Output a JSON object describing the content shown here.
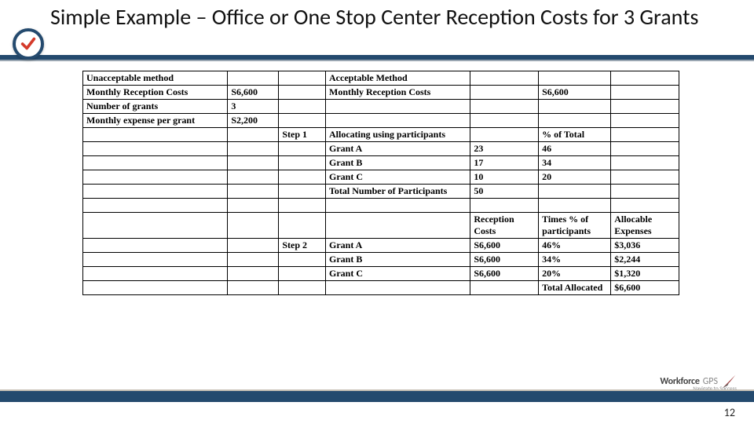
{
  "title": "Simple Example – Office or One Stop Center Reception Costs for 3 Grants",
  "page_number": "12",
  "logo": {
    "brand": "Workforce",
    "suffix": "GPS",
    "tagline": "Navigate to Success"
  },
  "colors": {
    "accent": "#244a6e",
    "check": "#d43a2a"
  },
  "table": {
    "columns": [
      "c1",
      "c2",
      "c3",
      "c4",
      "c5",
      "c6",
      "c7"
    ],
    "rows": [
      [
        {
          "t": "Unacceptable method",
          "b": true
        },
        {
          "t": ""
        },
        {
          "t": ""
        },
        {
          "t": "Acceptable Method",
          "b": true
        },
        {
          "t": ""
        },
        {
          "t": ""
        },
        {
          "t": ""
        }
      ],
      [
        {
          "t": "Monthly Reception Costs",
          "b": true
        },
        {
          "t": "S6,600",
          "b": true
        },
        {
          "t": ""
        },
        {
          "t": "Monthly Reception Costs",
          "b": true
        },
        {
          "t": ""
        },
        {
          "t": "S6,600",
          "b": true
        },
        {
          "t": ""
        }
      ],
      [
        {
          "t": "Number of grants",
          "b": true
        },
        {
          "t": "3",
          "b": true
        },
        {
          "t": ""
        },
        {
          "t": ""
        },
        {
          "t": ""
        },
        {
          "t": ""
        },
        {
          "t": ""
        }
      ],
      [
        {
          "t": "Monthly expense per grant",
          "b": true
        },
        {
          "t": "S2,200",
          "b": true
        },
        {
          "t": ""
        },
        {
          "t": ""
        },
        {
          "t": ""
        },
        {
          "t": ""
        },
        {
          "t": ""
        }
      ],
      [
        {
          "t": ""
        },
        {
          "t": ""
        },
        {
          "t": "Step 1",
          "b": true
        },
        {
          "t": "Allocating using participants",
          "b": true
        },
        {
          "t": ""
        },
        {
          "t": "% of Total",
          "b": true
        },
        {
          "t": ""
        }
      ],
      [
        {
          "t": ""
        },
        {
          "t": ""
        },
        {
          "t": ""
        },
        {
          "t": "Grant A",
          "b": true
        },
        {
          "t": "23",
          "b": true
        },
        {
          "t": "46",
          "b": true
        },
        {
          "t": ""
        }
      ],
      [
        {
          "t": ""
        },
        {
          "t": ""
        },
        {
          "t": ""
        },
        {
          "t": "Grant B",
          "b": true
        },
        {
          "t": "17",
          "b": true
        },
        {
          "t": "34",
          "b": true
        },
        {
          "t": ""
        }
      ],
      [
        {
          "t": ""
        },
        {
          "t": ""
        },
        {
          "t": ""
        },
        {
          "t": "Grant C",
          "b": true
        },
        {
          "t": "10",
          "b": true
        },
        {
          "t": "20",
          "b": true
        },
        {
          "t": ""
        }
      ],
      [
        {
          "t": ""
        },
        {
          "t": ""
        },
        {
          "t": ""
        },
        {
          "t": "Total Number of Participants",
          "b": true
        },
        {
          "t": "50",
          "b": true
        },
        {
          "t": ""
        },
        {
          "t": ""
        }
      ],
      [
        {
          "t": ""
        },
        {
          "t": ""
        },
        {
          "t": ""
        },
        {
          "t": ""
        },
        {
          "t": ""
        },
        {
          "t": ""
        },
        {
          "t": ""
        }
      ],
      [
        {
          "t": ""
        },
        {
          "t": ""
        },
        {
          "t": ""
        },
        {
          "t": ""
        },
        {
          "t": "Reception Costs",
          "b": true
        },
        {
          "t": "Times  % of participants",
          "b": true
        },
        {
          "t": "Allocable Expenses",
          "b": true
        }
      ],
      [
        {
          "t": ""
        },
        {
          "t": ""
        },
        {
          "t": "Step 2",
          "b": true
        },
        {
          "t": "Grant A",
          "b": true
        },
        {
          "t": "S6,600",
          "b": true
        },
        {
          "t": "46%",
          "b": true
        },
        {
          "t": "$3,036",
          "b": true
        }
      ],
      [
        {
          "t": ""
        },
        {
          "t": ""
        },
        {
          "t": ""
        },
        {
          "t": "Grant B",
          "b": true
        },
        {
          "t": "S6,600",
          "b": true
        },
        {
          "t": "34%",
          "b": true
        },
        {
          "t": "$2,244",
          "b": true
        }
      ],
      [
        {
          "t": ""
        },
        {
          "t": ""
        },
        {
          "t": ""
        },
        {
          "t": "Grant C",
          "b": true
        },
        {
          "t": "S6,600",
          "b": true
        },
        {
          "t": "20%",
          "b": true
        },
        {
          "t": "$1,320",
          "b": true
        }
      ],
      [
        {
          "t": ""
        },
        {
          "t": ""
        },
        {
          "t": ""
        },
        {
          "t": ""
        },
        {
          "t": ""
        },
        {
          "t": "Total Allocated",
          "b": true
        },
        {
          "t": "$6,600",
          "b": true
        }
      ]
    ]
  }
}
